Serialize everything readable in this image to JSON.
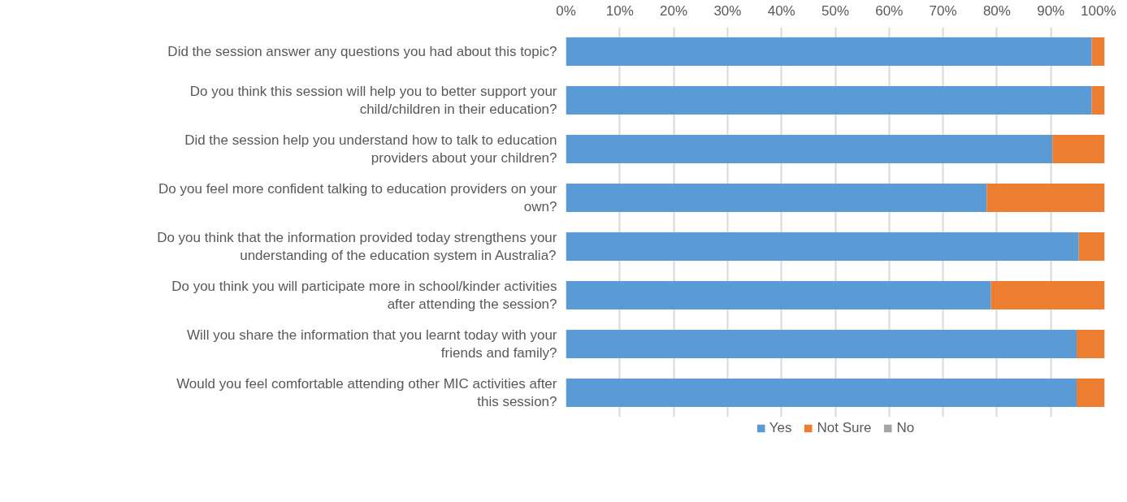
{
  "chart_data": {
    "type": "bar",
    "orientation": "horizontal",
    "stacked": true,
    "categories": [
      "Did the session answer any questions you had about this topic?",
      "Do you think this session will help you to better support your child/children in their education?",
      "Did the session help you understand how to talk to education providers about your children?",
      "Do you feel more confident talking to education providers on your own?",
      "Do you think that the information provided today strengthens your understanding of the education system in Australia?",
      "Do you think you will participate more in school/kinder activities after attending the session?",
      "Will you share the information that you learnt today with your friends and family?",
      "Would you feel comfortable attending other MIC activities after this session?"
    ],
    "series": [
      {
        "name": "Yes",
        "color": "#5b9bd5",
        "values": [
          97.6,
          97.6,
          90.3,
          78.1,
          95.2,
          78.9,
          94.8,
          94.8
        ]
      },
      {
        "name": "Not Sure",
        "color": "#ed7d31",
        "values": [
          2.4,
          2.4,
          9.7,
          21.9,
          4.8,
          21.1,
          5.2,
          5.2
        ]
      },
      {
        "name": "No",
        "color": "#a5a5a5",
        "values": [
          0,
          0,
          0,
          0,
          0,
          0,
          0,
          0
        ]
      }
    ],
    "xlim": [
      0,
      100
    ],
    "xticks": [
      {
        "value": 0,
        "label": "0%"
      },
      {
        "value": 10,
        "label": "10%"
      },
      {
        "value": 20,
        "label": "20%"
      },
      {
        "value": 30,
        "label": "30%"
      },
      {
        "value": 40,
        "label": "40%"
      },
      {
        "value": 50,
        "label": "50%"
      },
      {
        "value": 60,
        "label": "60%"
      },
      {
        "value": 70,
        "label": "70%"
      },
      {
        "value": 80,
        "label": "80%"
      },
      {
        "value": 90,
        "label": "90%"
      },
      {
        "value": 100,
        "label": "100%"
      }
    ],
    "grid": "x",
    "legend": "bottom"
  }
}
